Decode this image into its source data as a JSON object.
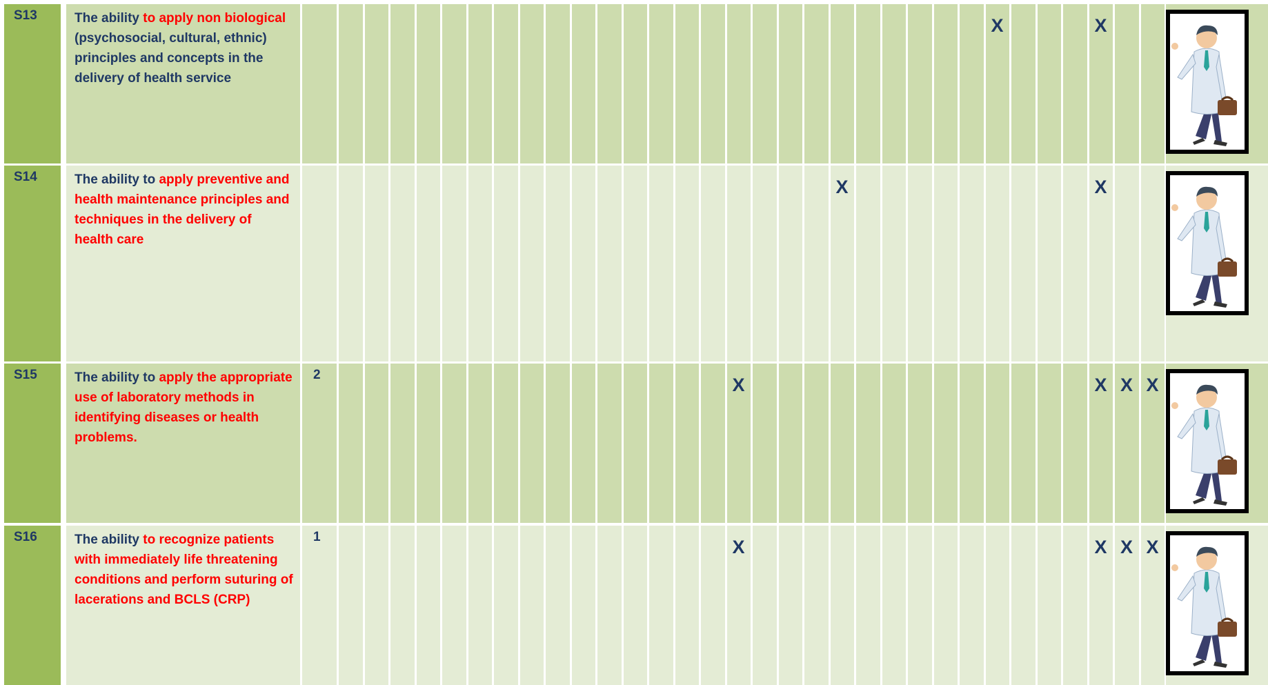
{
  "rows": [
    {
      "code": "S13",
      "description": [
        {
          "text": "The ability ",
          "red": false
        },
        {
          "text": "to apply non biological",
          "red": true
        },
        {
          "text": " (psychosocial, cultural, ethnic) principles and concepts in the delivery of health service",
          "red": false
        }
      ],
      "number": null,
      "cells": [
        null,
        null,
        null,
        null,
        null,
        null,
        null,
        null,
        null,
        null,
        null,
        null,
        null,
        null,
        null,
        null,
        null,
        null,
        null,
        null,
        null,
        null,
        null,
        null,
        null,
        "X",
        null,
        null,
        null,
        "X",
        null,
        null
      ]
    },
    {
      "code": "S14",
      "description": [
        {
          "text": "The ability to ",
          "red": false
        },
        {
          "text": "apply preventive and health maintenance principles and techniques in the delivery of health care",
          "red": true
        }
      ],
      "number": null,
      "cells": [
        null,
        null,
        null,
        null,
        null,
        null,
        null,
        null,
        null,
        null,
        null,
        null,
        null,
        null,
        null,
        null,
        null,
        null,
        null,
        "X",
        null,
        null,
        null,
        null,
        null,
        null,
        null,
        null,
        null,
        "X",
        null,
        null
      ]
    },
    {
      "code": "S15",
      "description": [
        {
          "text": "The ability to ",
          "red": false
        },
        {
          "text": "apply the appropriate use of laboratory methods in identifying diseases or health problems.",
          "red": true
        }
      ],
      "number": "2",
      "cells": [
        null,
        null,
        null,
        null,
        null,
        null,
        null,
        null,
        null,
        null,
        null,
        null,
        null,
        null,
        null,
        "X",
        null,
        null,
        null,
        null,
        null,
        null,
        null,
        null,
        null,
        null,
        null,
        null,
        null,
        "X",
        "X",
        "X"
      ]
    },
    {
      "code": "S16",
      "description": [
        {
          "text": "The ability ",
          "red": false
        },
        {
          "text": "to recognize patients with immediately life threatening conditions and perform suturing of lacerations and BCLS (CRP)",
          "red": true
        }
      ],
      "number": "1",
      "cells": [
        null,
        null,
        null,
        null,
        null,
        null,
        null,
        null,
        null,
        null,
        null,
        null,
        null,
        null,
        null,
        "X",
        null,
        null,
        null,
        null,
        null,
        null,
        null,
        null,
        null,
        null,
        null,
        null,
        null,
        "X",
        "X",
        "X"
      ]
    }
  ]
}
